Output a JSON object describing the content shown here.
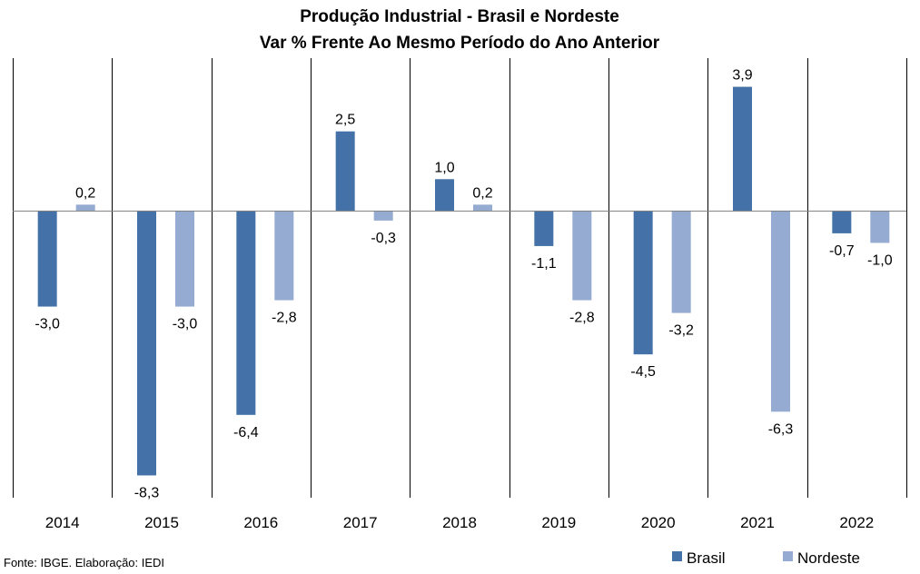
{
  "chart_data": {
    "type": "bar",
    "title": "Produção Industrial  - Brasil e Nordeste",
    "subtitle": "Var % Frente Ao Mesmo Período do Ano Anterior",
    "categories": [
      "2014",
      "2015",
      "2016",
      "2017",
      "2018",
      "2019",
      "2020",
      "2021",
      "2022"
    ],
    "series": [
      {
        "name": "Brasil",
        "color": "#4472a8",
        "values": [
          -3.0,
          -8.3,
          -6.4,
          2.5,
          1.0,
          -1.1,
          -4.5,
          3.9,
          -0.7
        ],
        "labels": [
          "-3,0",
          "-8,3",
          "-6,4",
          "2,5",
          "1,0",
          "-1,1",
          "-4,5",
          "3,9",
          "-0,7"
        ]
      },
      {
        "name": "Nordeste",
        "color": "#95abd2",
        "values": [
          0.2,
          -3.0,
          -2.8,
          -0.3,
          0.2,
          -2.8,
          -3.2,
          -6.3,
          -1.0
        ],
        "labels": [
          "0,2",
          "-3,0",
          "-2,8",
          "-0,3",
          "0,2",
          "-2,8",
          "-3,2",
          "-6,3",
          "-1,0"
        ]
      }
    ],
    "ylim": [
      -9.0,
      4.8
    ],
    "grid": "vertical separators",
    "legend": "bottom-right",
    "xlabel": "",
    "ylabel": ""
  },
  "source": "Fonte: IBGE. Elaboração: IEDI"
}
